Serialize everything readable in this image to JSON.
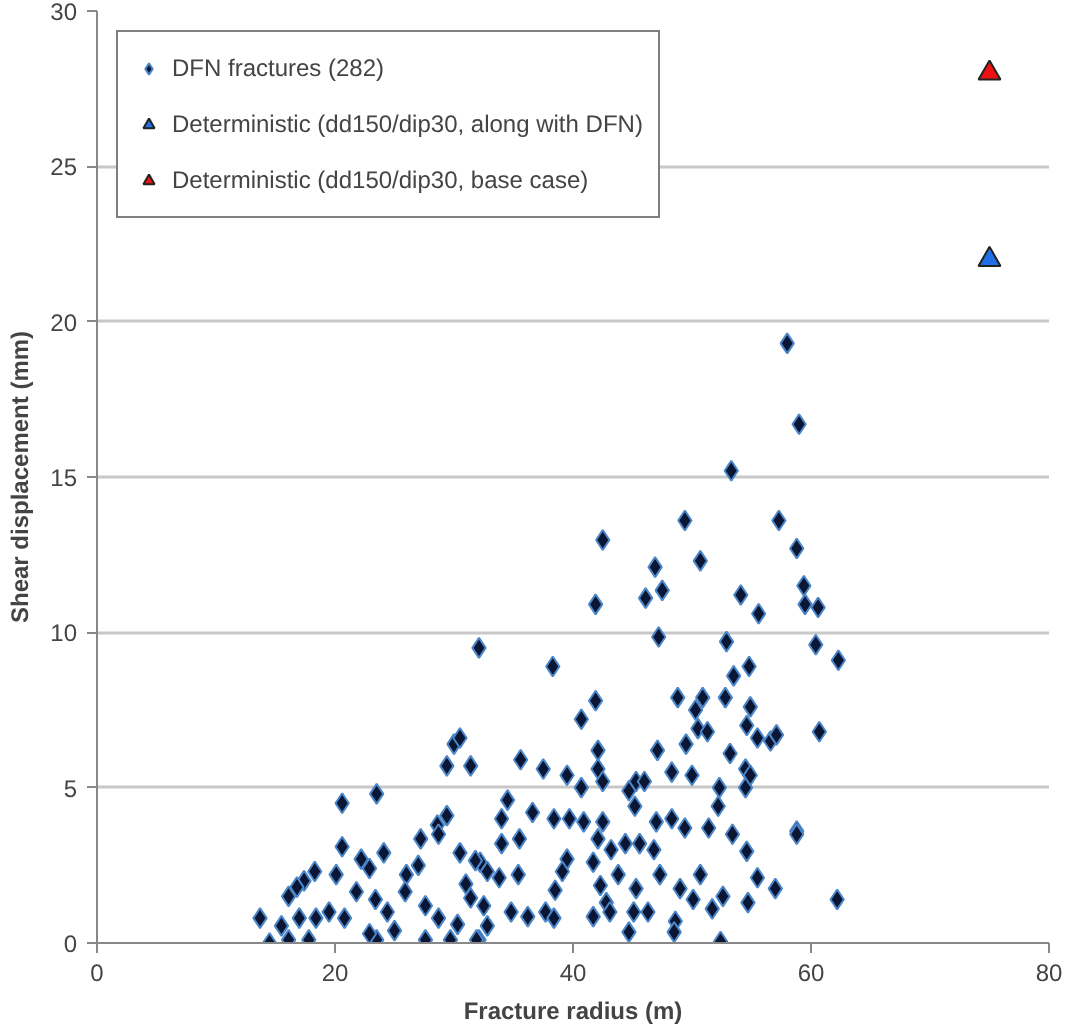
{
  "chart_data": {
    "type": "scatter",
    "xlabel": "Fracture radius (m)",
    "ylabel": "Shear displacement (mm)",
    "xlim": [
      0,
      80
    ],
    "xticks": [
      0,
      20,
      40,
      60,
      80
    ],
    "ylim": [
      0,
      30
    ],
    "yticks": [
      0,
      5,
      10,
      15,
      20,
      25,
      30
    ],
    "grid": "y",
    "legend": "top left",
    "series": [
      {
        "name": "DFN fractures (282)",
        "color": "#0a1633",
        "marker": "diamond",
        "x": [
          58.0,
          59.0,
          53.3,
          49.4,
          42.5,
          57.3,
          58.8,
          50.7,
          46.9,
          41.9,
          46.1,
          47.5,
          59.4,
          59.5,
          60.6,
          54.1,
          55.6,
          47.2,
          52.9,
          60.4,
          62.3,
          32.1,
          38.3,
          54.8,
          53.5,
          48.8,
          50.9,
          52.8,
          41.9,
          50.3,
          54.9,
          40.7,
          50.5,
          51.3,
          54.6,
          55.5,
          56.6,
          57.1,
          60.7,
          47.1,
          49.5,
          42.1,
          53.2,
          35.6,
          37.5,
          39.5,
          40.7,
          42.1,
          42.5,
          44.7,
          45.3,
          46.0,
          48.3,
          50.0,
          52.3,
          54.5,
          54.5,
          54.9,
          34.5,
          34.0,
          36.6,
          38.4,
          39.7,
          40.9,
          42.5,
          45.2,
          47.0,
          48.3,
          49.4,
          51.4,
          52.2,
          53.4,
          58.8,
          58.8,
          54.6,
          34.0,
          35.5,
          42.1,
          43.2,
          44.4,
          45.6,
          46.8,
          32.2,
          33.8,
          35.4,
          39.5,
          39.1,
          41.7,
          43.8,
          47.3,
          50.7,
          55.5,
          57.0,
          49.0,
          45.3,
          38.5,
          42.3,
          52.6,
          62.2,
          54.7,
          50.1,
          51.7,
          46.3,
          42.8,
          41.7,
          43.1,
          45.1,
          48.6,
          44.7,
          48.5,
          52.4,
          37.7,
          38.4,
          36.2,
          34.8,
          32.8,
          32.1,
          20.6,
          23.5,
          20.6,
          24.1,
          13.7,
          14.5,
          29.4,
          31.4,
          30.0,
          30.5,
          29.4,
          28.6,
          27.2,
          28.7,
          30.5,
          31.8,
          32.8,
          20.1,
          18.3,
          17.4,
          16.1,
          16.8,
          15.5,
          16.1,
          17.8,
          18.4,
          17.0,
          19.5,
          20.8,
          21.8,
          22.2,
          22.9,
          23.4,
          23.5,
          24.4,
          26.0,
          25.9,
          27.0,
          27.6,
          27.6,
          28.7,
          29.7,
          30.3,
          31.4,
          31.9,
          32.5,
          22.9,
          25.0,
          31.0
        ],
        "values": [
          19.3,
          16.7,
          15.2,
          13.6,
          12.97,
          13.6,
          12.7,
          12.3,
          12.1,
          10.9,
          11.1,
          11.35,
          11.5,
          10.9,
          10.8,
          11.2,
          10.6,
          9.85,
          9.7,
          9.6,
          9.1,
          9.5,
          8.9,
          8.9,
          8.6,
          7.9,
          7.9,
          7.9,
          7.8,
          7.5,
          7.6,
          7.2,
          6.9,
          6.8,
          7.0,
          6.6,
          6.5,
          6.7,
          6.8,
          6.2,
          6.4,
          6.2,
          6.1,
          5.9,
          5.6,
          5.4,
          5.0,
          5.6,
          5.2,
          4.9,
          5.2,
          5.2,
          5.5,
          5.4,
          5.0,
          5.0,
          5.6,
          5.4,
          4.6,
          4.0,
          4.2,
          4.0,
          4.0,
          3.9,
          3.9,
          4.4,
          3.9,
          4.0,
          3.7,
          3.7,
          4.4,
          3.5,
          3.6,
          3.5,
          2.95,
          3.2,
          3.35,
          3.35,
          3.0,
          3.2,
          3.2,
          3.0,
          2.6,
          2.1,
          2.2,
          2.7,
          2.3,
          2.6,
          2.2,
          2.2,
          2.2,
          2.1,
          1.75,
          1.75,
          1.75,
          1.7,
          1.85,
          1.5,
          1.4,
          1.3,
          1.4,
          1.1,
          1.0,
          1.3,
          0.85,
          1.0,
          1.0,
          0.7,
          0.35,
          0.35,
          0.05,
          1.0,
          0.8,
          0.85,
          1.0,
          0.55,
          0.1,
          4.5,
          4.8,
          3.1,
          2.9,
          0.8,
          0.0,
          5.7,
          5.7,
          6.4,
          6.6,
          4.1,
          3.8,
          3.35,
          3.5,
          2.9,
          2.65,
          2.3,
          2.2,
          2.3,
          2.0,
          1.5,
          1.8,
          0.55,
          0.1,
          0.1,
          0.8,
          0.8,
          1.0,
          0.8,
          1.65,
          2.7,
          2.4,
          1.4,
          0.1,
          1.0,
          2.2,
          1.65,
          2.5,
          1.2,
          0.1,
          0.8,
          0.1,
          0.6,
          1.45,
          0.1,
          1.2,
          0.3,
          0.4,
          1.9
        ]
      },
      {
        "name": "Deterministic (dd150/dip30, along with DFN)",
        "color": "#1f6fe8",
        "marker": "triangle",
        "x": [
          75
        ],
        "values": [
          22
        ]
      },
      {
        "name": "Deterministic (dd150/dip30, base case)",
        "color": "#ee1111",
        "marker": "triangle",
        "x": [
          75
        ],
        "values": [
          28
        ]
      }
    ]
  }
}
